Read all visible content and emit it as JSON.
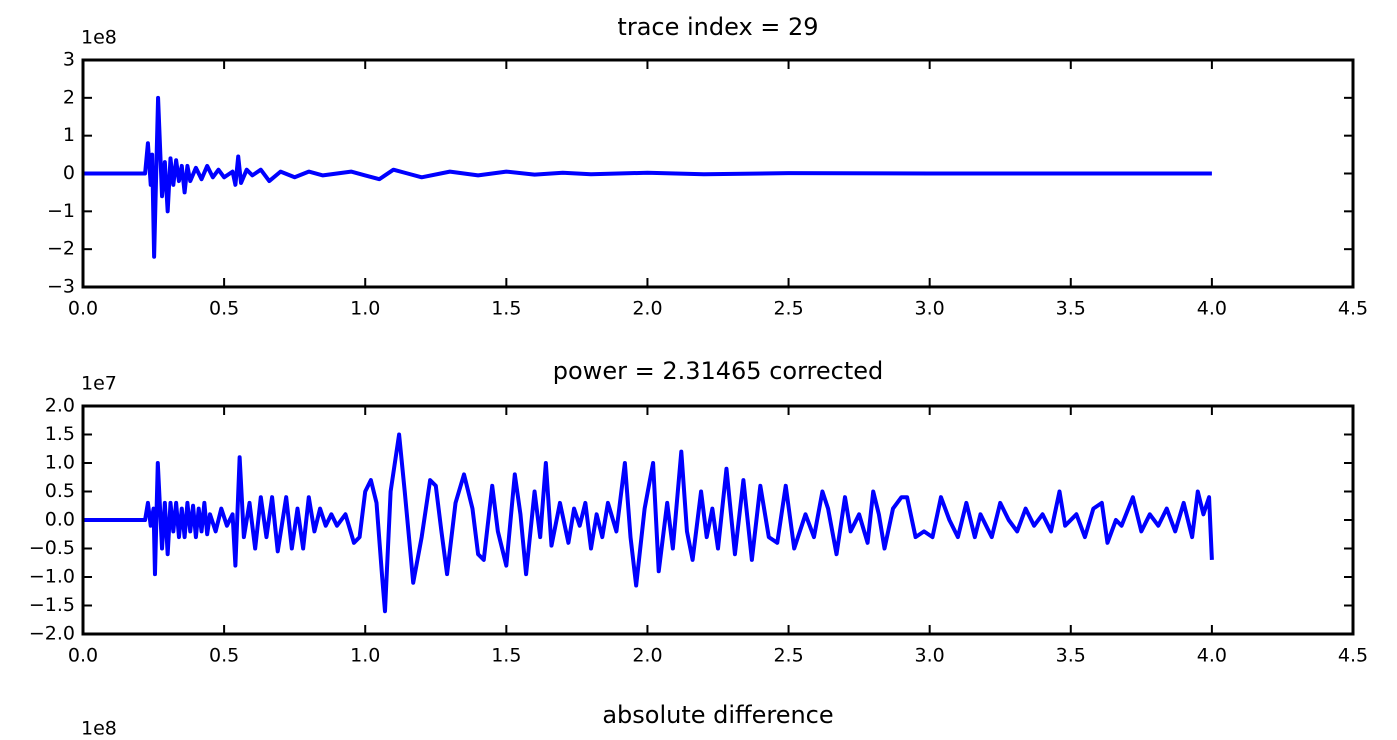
{
  "chart_data": [
    {
      "type": "line",
      "title": "trace index = 29",
      "offset_label": "1e8",
      "xlim": [
        0,
        4.5
      ],
      "xticks": [
        {
          "value": 0,
          "label": "0.0"
        },
        0.5,
        {
          "value": 1,
          "label": "1.0"
        },
        1.5,
        {
          "value": 2,
          "label": "2.0"
        },
        2.5,
        {
          "value": 3,
          "label": "3.0"
        },
        3.5,
        {
          "value": 4,
          "label": "4.0"
        },
        4.5
      ],
      "ylim": [
        -3,
        3
      ],
      "yticks": [
        {
          "value": -3,
          "label": "−3"
        },
        {
          "value": -2,
          "label": "−2"
        },
        {
          "value": -1,
          "label": "−1"
        },
        0,
        1,
        2,
        3
      ],
      "x": [
        0,
        0.22,
        0.23,
        0.24,
        0.245,
        0.252,
        0.266,
        0.28,
        0.29,
        0.3,
        0.31,
        0.32,
        0.33,
        0.34,
        0.35,
        0.36,
        0.37,
        0.38,
        0.4,
        0.42,
        0.44,
        0.46,
        0.48,
        0.5,
        0.53,
        0.54,
        0.55,
        0.56,
        0.58,
        0.6,
        0.63,
        0.66,
        0.7,
        0.75,
        0.8,
        0.85,
        0.9,
        0.95,
        1.0,
        1.05,
        1.1,
        1.15,
        1.2,
        1.3,
        1.4,
        1.5,
        1.6,
        1.7,
        1.8,
        2.0,
        2.2,
        2.5,
        3.0,
        3.5,
        4.0
      ],
      "series": [
        {
          "color": "#0000ff",
          "values": [
            0,
            0,
            0.8,
            -0.3,
            0.5,
            -2.2,
            2.0,
            -0.6,
            0.3,
            -1.0,
            0.4,
            -0.3,
            0.35,
            -0.2,
            0.2,
            -0.5,
            0.2,
            -0.2,
            0.15,
            -0.15,
            0.2,
            -0.1,
            0.1,
            -0.1,
            0.05,
            -0.3,
            0.45,
            -0.25,
            0.1,
            -0.05,
            0.1,
            -0.2,
            0.05,
            -0.1,
            0.05,
            -0.05,
            0,
            0.05,
            -0.05,
            -0.15,
            0.1,
            0,
            -0.1,
            0.05,
            -0.05,
            0.05,
            -0.03,
            0.02,
            -0.02,
            0.02,
            -0.02,
            0.01,
            0,
            0,
            0
          ]
        }
      ]
    },
    {
      "type": "line",
      "title": "power = 2.31465 corrected",
      "offset_label": "1e7",
      "xlim": [
        0,
        4.5
      ],
      "xticks": [
        {
          "value": 0,
          "label": "0.0"
        },
        0.5,
        {
          "value": 1,
          "label": "1.0"
        },
        1.5,
        {
          "value": 2,
          "label": "2.0"
        },
        2.5,
        {
          "value": 3,
          "label": "3.0"
        },
        3.5,
        {
          "value": 4,
          "label": "4.0"
        },
        4.5
      ],
      "ylim": [
        -2,
        2
      ],
      "yticks": [
        {
          "value": -2,
          "label": "−2.0"
        },
        {
          "value": -1.5,
          "label": "−1.5"
        },
        {
          "value": -1,
          "label": "−1.0"
        },
        {
          "value": -0.5,
          "label": "−0.5"
        },
        {
          "value": 0,
          "label": "0.0"
        },
        0.5,
        {
          "value": 1,
          "label": "1.0"
        },
        1.5,
        {
          "value": 2,
          "label": "2.0"
        }
      ],
      "x": [
        0,
        0.22,
        0.23,
        0.24,
        0.25,
        0.255,
        0.265,
        0.28,
        0.29,
        0.3,
        0.31,
        0.32,
        0.33,
        0.34,
        0.35,
        0.36,
        0.37,
        0.38,
        0.39,
        0.4,
        0.41,
        0.42,
        0.43,
        0.44,
        0.45,
        0.47,
        0.49,
        0.51,
        0.53,
        0.54,
        0.555,
        0.57,
        0.59,
        0.61,
        0.63,
        0.65,
        0.67,
        0.69,
        0.72,
        0.74,
        0.76,
        0.78,
        0.8,
        0.82,
        0.84,
        0.86,
        0.88,
        0.9,
        0.93,
        0.96,
        0.98,
        1.0,
        1.02,
        1.04,
        1.06,
        1.07,
        1.09,
        1.12,
        1.14,
        1.17,
        1.2,
        1.23,
        1.25,
        1.27,
        1.29,
        1.32,
        1.35,
        1.38,
        1.4,
        1.42,
        1.45,
        1.47,
        1.5,
        1.53,
        1.55,
        1.57,
        1.6,
        1.62,
        1.64,
        1.66,
        1.69,
        1.72,
        1.74,
        1.76,
        1.78,
        1.8,
        1.82,
        1.84,
        1.86,
        1.89,
        1.92,
        1.94,
        1.96,
        1.99,
        2.02,
        2.04,
        2.07,
        2.09,
        2.12,
        2.14,
        2.16,
        2.19,
        2.21,
        2.23,
        2.25,
        2.28,
        2.31,
        2.34,
        2.37,
        2.4,
        2.43,
        2.46,
        2.49,
        2.52,
        2.56,
        2.59,
        2.62,
        2.64,
        2.67,
        2.7,
        2.72,
        2.75,
        2.78,
        2.8,
        2.82,
        2.84,
        2.87,
        2.9,
        2.92,
        2.95,
        2.98,
        3.01,
        3.04,
        3.07,
        3.1,
        3.13,
        3.16,
        3.18,
        3.22,
        3.25,
        3.28,
        3.31,
        3.34,
        3.37,
        3.4,
        3.43,
        3.46,
        3.48,
        3.52,
        3.55,
        3.58,
        3.61,
        3.63,
        3.66,
        3.68,
        3.72,
        3.75,
        3.78,
        3.81,
        3.84,
        3.87,
        3.9,
        3.93,
        3.95,
        3.97,
        3.99,
        4.0
      ],
      "series": [
        {
          "color": "#0000ff",
          "values": [
            0,
            0,
            0.3,
            -0.1,
            0.2,
            -0.95,
            1.0,
            -0.5,
            0.3,
            -0.6,
            0.3,
            -0.2,
            0.3,
            -0.3,
            0.2,
            -0.3,
            0.3,
            -0.2,
            0.25,
            -0.3,
            0.2,
            -0.2,
            0.3,
            -0.25,
            0.1,
            -0.2,
            0.2,
            -0.1,
            0.1,
            -0.8,
            1.1,
            -0.3,
            0.3,
            -0.5,
            0.4,
            -0.3,
            0.4,
            -0.55,
            0.4,
            -0.5,
            0.2,
            -0.5,
            0.4,
            -0.2,
            0.2,
            -0.1,
            0.1,
            -0.1,
            0.1,
            -0.4,
            -0.3,
            0.5,
            0.7,
            0.3,
            -1.0,
            -1.6,
            0.5,
            1.5,
            0.5,
            -1.1,
            -0.3,
            0.7,
            0.6,
            -0.2,
            -0.95,
            0.3,
            0.8,
            0.2,
            -0.6,
            -0.7,
            0.6,
            -0.2,
            -0.8,
            0.8,
            0.1,
            -0.95,
            0.5,
            -0.3,
            1.0,
            -0.45,
            0.3,
            -0.4,
            0.2,
            -0.1,
            0.3,
            -0.5,
            0.1,
            -0.3,
            0.3,
            -0.2,
            1.0,
            -0.3,
            -1.15,
            0.2,
            1.0,
            -0.9,
            0.3,
            -0.5,
            1.2,
            -0.2,
            -0.7,
            0.5,
            -0.3,
            0.2,
            -0.5,
            0.9,
            -0.6,
            0.7,
            -0.7,
            0.6,
            -0.3,
            -0.4,
            0.6,
            -0.5,
            0.1,
            -0.3,
            0.5,
            0.2,
            -0.6,
            0.4,
            -0.2,
            0.1,
            -0.4,
            0.5,
            0.1,
            -0.5,
            0.2,
            0.4,
            0.4,
            -0.3,
            -0.2,
            -0.3,
            0.4,
            0,
            -0.3,
            0.3,
            -0.3,
            0.1,
            -0.3,
            0.3,
            0,
            -0.2,
            0.2,
            -0.1,
            0.1,
            -0.2,
            0.5,
            -0.1,
            0.1,
            -0.3,
            0.2,
            0.3,
            -0.4,
            0,
            -0.1,
            0.4,
            -0.2,
            0.1,
            -0.1,
            0.2,
            -0.2,
            0.3,
            -0.3,
            0.5,
            0.1,
            0.4,
            -0.7
          ]
        }
      ]
    },
    {
      "type": "line",
      "title": "absolute difference",
      "offset_label": "1e8"
    }
  ]
}
